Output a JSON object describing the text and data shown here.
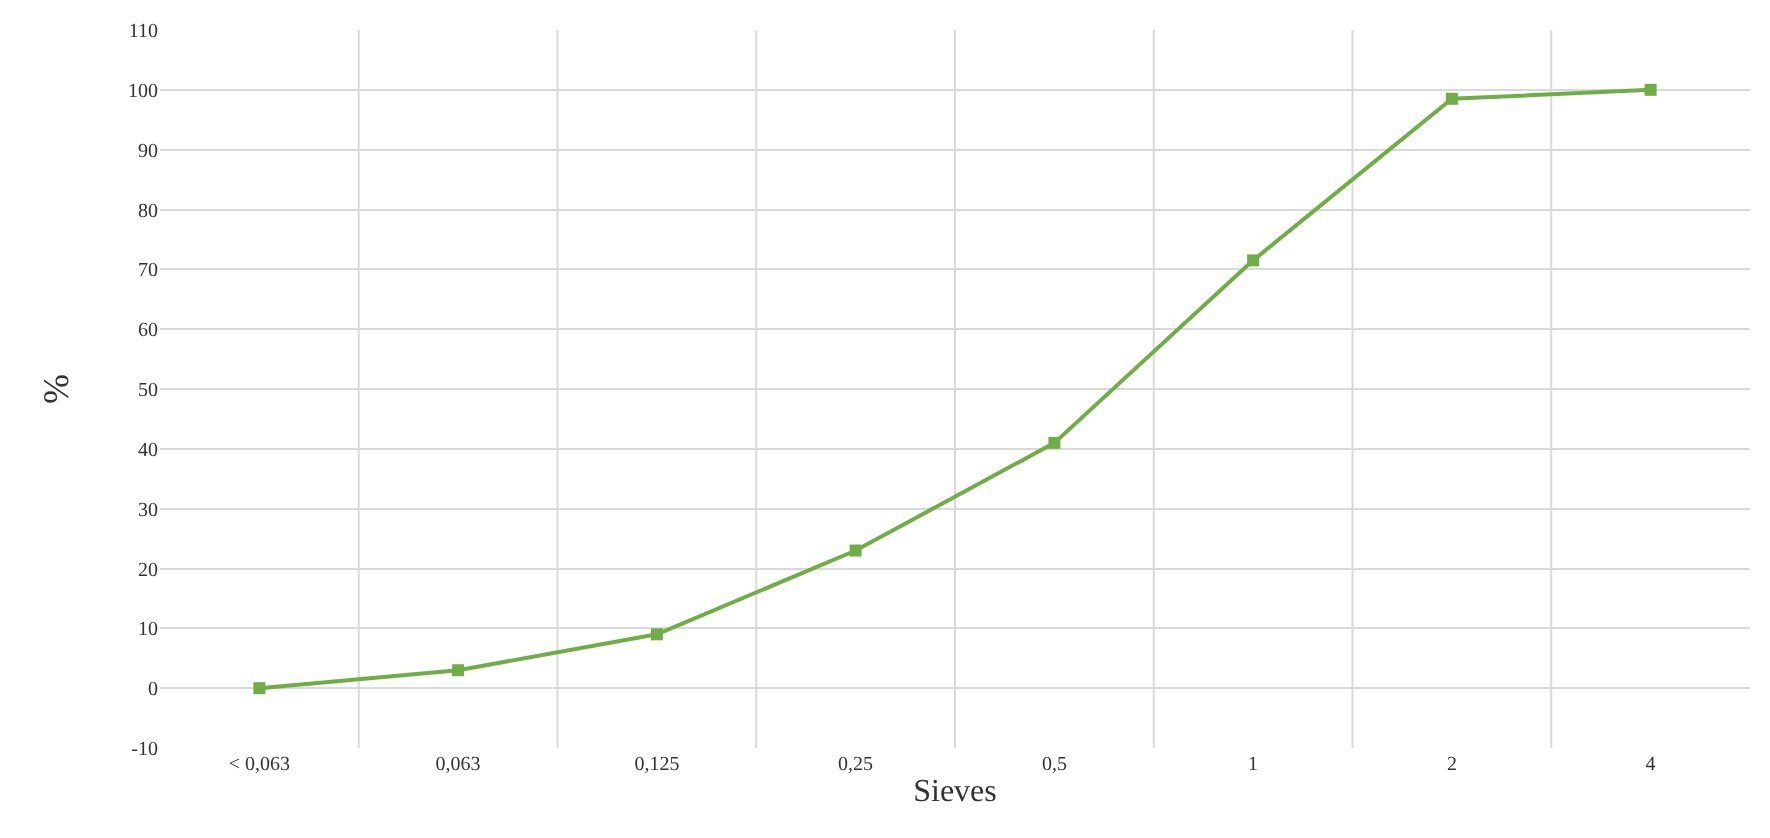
{
  "chart_data": {
    "type": "line",
    "xlabel": "Sieves",
    "ylabel": "%",
    "categories": [
      "< 0,063",
      "0,063",
      "0,125",
      "0,25",
      "0,5",
      "1",
      "2",
      "4"
    ],
    "series": [
      {
        "color": "#70ad47",
        "values": [
          0,
          3,
          9,
          23,
          41,
          71.5,
          98.5,
          100
        ]
      }
    ],
    "ylim": [
      -10,
      110
    ],
    "yticks": [
      -10,
      0,
      10,
      20,
      30,
      40,
      50,
      60,
      70,
      80,
      90,
      100,
      110
    ],
    "grid": true,
    "marker": "square",
    "line_style": "solid"
  }
}
